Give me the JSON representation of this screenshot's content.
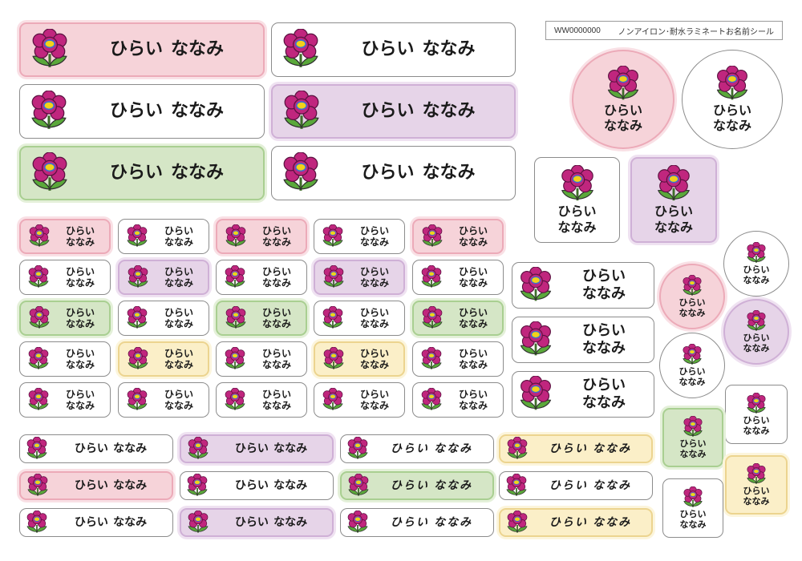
{
  "header": {
    "code": "WW0000000",
    "product": "ノンアイロン･耐水ラミネートお名前シール"
  },
  "name": {
    "family": "ひらい",
    "given": "ななみ"
  },
  "icon": "flower-icon",
  "colors": {
    "pink": "#f6d3d9",
    "purple": "#e6d4e8",
    "green": "#d5e6c6",
    "yellow": "#fbefc8",
    "petal": "#c0267e",
    "center": "#f2d21a",
    "leaf": "#5aa83a"
  }
}
